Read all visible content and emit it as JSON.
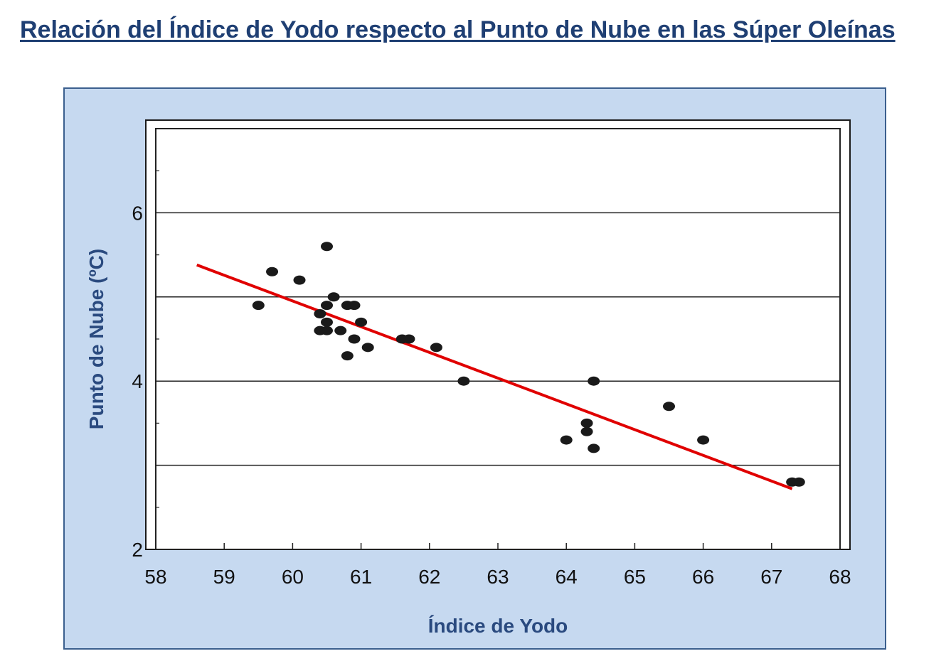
{
  "slide": {
    "title": "Relación del Índice de Yodo respecto al Punto de Nube en las Súper Oleínas"
  },
  "colors": {
    "title": "#1f3f73",
    "frame_background": "#c6d9f0",
    "frame_border": "#3b5f8e",
    "axis_title": "#2a4a7f",
    "points": "#1a1a1a",
    "trendline": "#e00000",
    "plot_background": "#ffffff"
  },
  "chart_data": {
    "type": "scatter",
    "title": "",
    "xlabel": "Índice de Yodo",
    "ylabel": "Punto de Nube (ºC)",
    "xlim": [
      58,
      68
    ],
    "ylim": [
      2,
      7
    ],
    "x_ticks": [
      "58",
      "59",
      "60",
      "61",
      "62",
      "63",
      "64",
      "65",
      "66",
      "67",
      "68"
    ],
    "y_ticks": [
      "2",
      "4",
      "6"
    ],
    "grid": "horizontal",
    "legend": "none",
    "series": [
      {
        "points": [
          [
            59.5,
            4.9
          ],
          [
            59.7,
            5.3
          ],
          [
            60.1,
            5.2
          ],
          [
            60.4,
            4.8
          ],
          [
            60.4,
            4.6
          ],
          [
            60.5,
            4.9
          ],
          [
            60.5,
            4.7
          ],
          [
            60.5,
            4.6
          ],
          [
            60.5,
            5.6
          ],
          [
            60.6,
            5.0
          ],
          [
            60.7,
            4.6
          ],
          [
            60.8,
            4.9
          ],
          [
            60.9,
            4.9
          ],
          [
            60.8,
            4.3
          ],
          [
            60.9,
            4.5
          ],
          [
            61.0,
            4.7
          ],
          [
            61.1,
            4.4
          ],
          [
            61.6,
            4.5
          ],
          [
            61.7,
            4.5
          ],
          [
            62.1,
            4.4
          ],
          [
            62.5,
            4.0
          ],
          [
            64.0,
            3.3
          ],
          [
            64.3,
            3.5
          ],
          [
            64.3,
            3.4
          ],
          [
            64.4,
            3.2
          ],
          [
            64.4,
            4.0
          ],
          [
            65.5,
            3.7
          ],
          [
            66.0,
            3.3
          ],
          [
            67.3,
            2.8
          ],
          [
            67.4,
            2.8
          ]
        ]
      }
    ],
    "trendline": {
      "x": [
        58.6,
        67.3
      ],
      "y": [
        5.38,
        2.72
      ]
    }
  }
}
